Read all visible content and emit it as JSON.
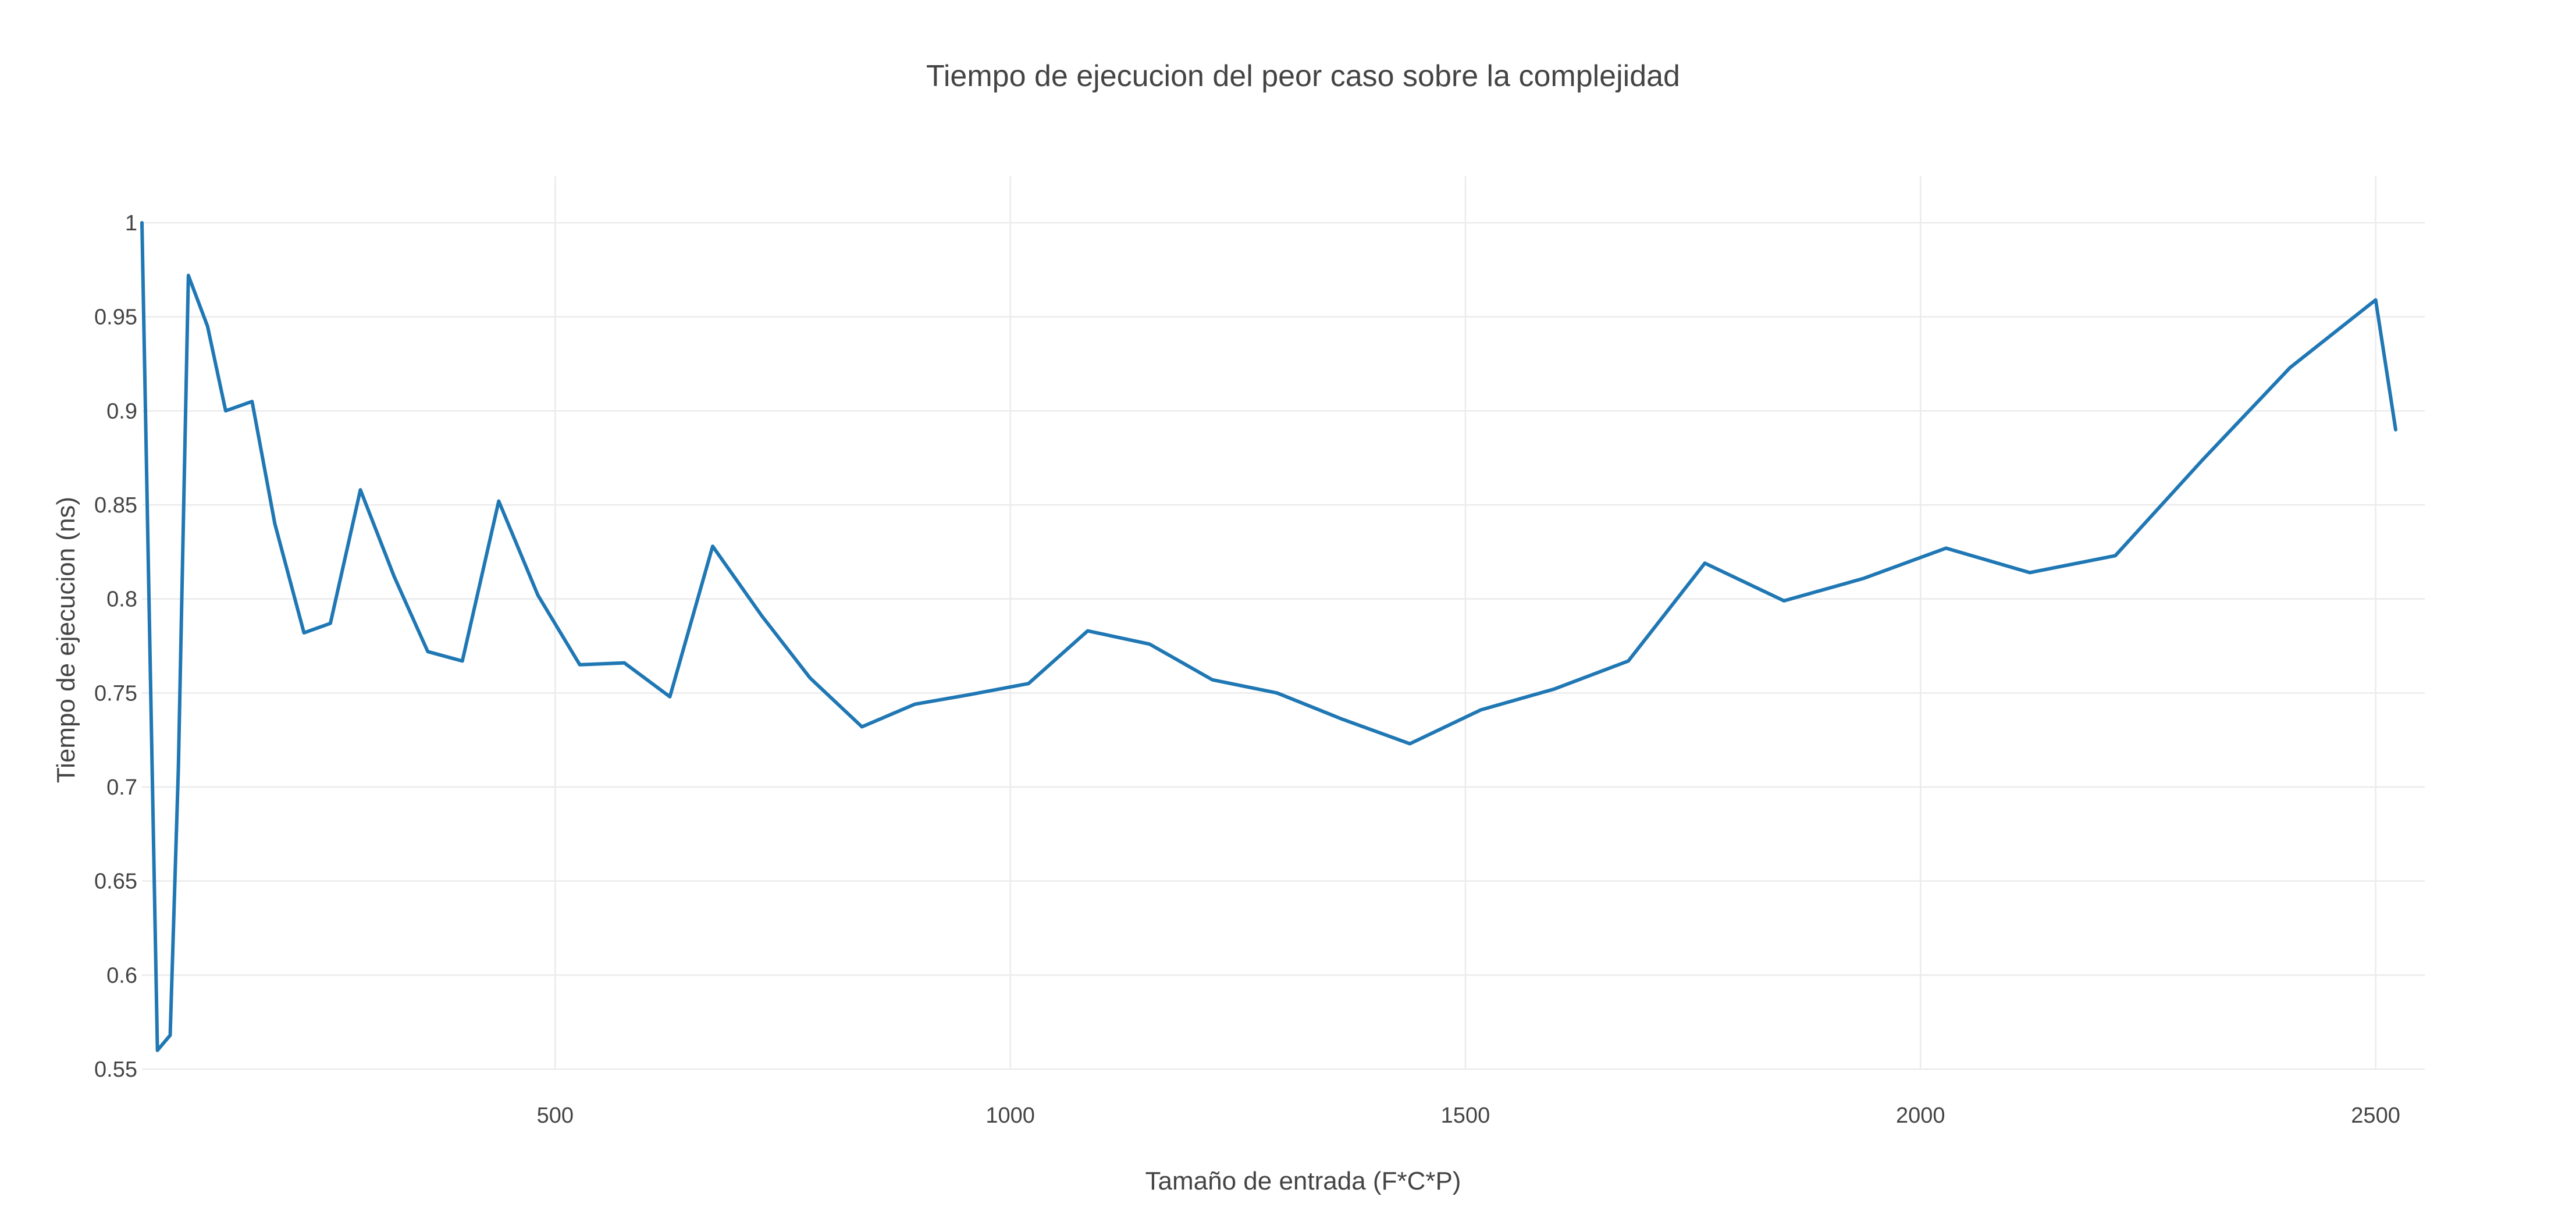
{
  "chart_data": {
    "type": "line",
    "title": "Tiempo de ejecucion del peor caso sobre la complejidad",
    "xlabel": "Tamaño de entrada (F*C*P)",
    "ylabel": "Tiempo de ejecucion (ns)",
    "xlim": [
      46,
      2522
    ],
    "ylim": [
      0.55,
      1.0
    ],
    "x_ticks": [
      500,
      1000,
      1500,
      2000,
      2500
    ],
    "y_ticks": [
      0.55,
      0.6,
      0.65,
      0.7,
      0.75,
      0.8,
      0.85,
      0.9,
      0.95,
      1
    ],
    "grid": true,
    "colors": {
      "line": "#1f77b4",
      "grid": "#ebebeb",
      "text": "#444444"
    },
    "series": [
      {
        "x": [
          46,
          63,
          77,
          86,
          97,
          118,
          138,
          167,
          192,
          224,
          253,
          286,
          323,
          360,
          398,
          438,
          481,
          527,
          576,
          626,
          673,
          727,
          780,
          837,
          895,
          954,
          1020,
          1085,
          1153,
          1222,
          1293,
          1365,
          1439,
          1517,
          1597,
          1679,
          1763,
          1850,
          1938,
          2028,
          2120,
          2214,
          2310,
          2406,
          2500,
          2522
        ],
        "y": [
          1.0,
          0.56,
          0.568,
          0.71,
          0.972,
          0.945,
          0.9,
          0.905,
          0.84,
          0.782,
          0.787,
          0.858,
          0.812,
          0.772,
          0.767,
          0.852,
          0.802,
          0.765,
          0.766,
          0.748,
          0.828,
          0.791,
          0.758,
          0.732,
          0.744,
          0.749,
          0.755,
          0.783,
          0.776,
          0.757,
          0.75,
          0.736,
          0.723,
          0.741,
          0.752,
          0.767,
          0.819,
          0.799,
          0.811,
          0.827,
          0.814,
          0.823,
          0.874,
          0.923,
          0.959,
          0.89
        ]
      }
    ]
  }
}
